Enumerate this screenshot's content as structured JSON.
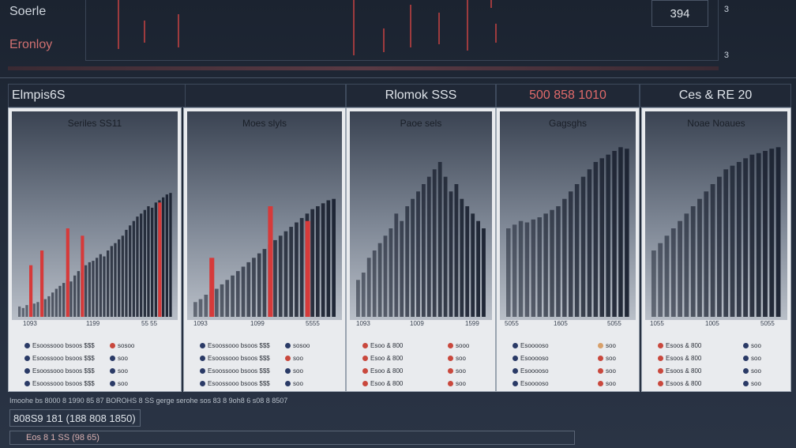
{
  "header": {
    "title": "Soerle",
    "subtitle": "Eronloy",
    "value_box": "394",
    "markers": [
      "3",
      "3"
    ]
  },
  "section_title": "Elmpis6S",
  "tabs": [
    {
      "label": "Rlomok SSS",
      "accent": false
    },
    {
      "label": "500 858 1010",
      "accent": true
    },
    {
      "label": "Ces & RE 20",
      "accent": false
    }
  ],
  "colors": {
    "accent_red": "#d63a3a",
    "bar_dark": "#1d2433",
    "legend_navy": "#2a3a66",
    "legend_red": "#c9483d",
    "legend_tan": "#d8a06a"
  },
  "chart_data": [
    {
      "type": "bar",
      "title": "Seriles SS11",
      "x_ticks": [
        "1093",
        "1199",
        "55 55"
      ],
      "series": [
        {
          "values": [
            14,
            12,
            16,
            15,
            18,
            20,
            22,
            24,
            28,
            33,
            38,
            42,
            46,
            50,
            48,
            56,
            62,
            60,
            70,
            74,
            76,
            80,
            85,
            82,
            90,
            96,
            100,
            105,
            110,
            118,
            124,
            130,
            136,
            140,
            145,
            150,
            148,
            155,
            158,
            162,
            166,
            168
          ]
        },
        {
          "values": [
            null,
            null,
            null,
            70,
            null,
            null,
            90,
            null,
            null,
            null,
            null,
            null,
            null,
            120,
            null,
            null,
            null,
            110,
            null,
            null,
            null,
            null,
            null,
            null,
            null,
            null,
            null,
            null,
            null,
            null,
            null,
            null,
            null,
            null,
            null,
            null,
            null,
            null,
            155,
            null,
            null,
            null
          ]
        }
      ],
      "legend": [
        {
          "text": "Esoossooo bsoos $$$",
          "color": "navy"
        },
        {
          "text": "Esoossooo bsoos $$$",
          "color": "navy"
        },
        {
          "text": "Esoossooo bsoos $$$",
          "color": "navy"
        },
        {
          "text": "Esoossooo bsoos $$$",
          "color": "navy"
        },
        {
          "text": "sosoo",
          "color": "red"
        },
        {
          "text": "soo",
          "color": "navy"
        },
        {
          "text": "soo",
          "color": "navy"
        },
        {
          "text": "soo",
          "color": "navy"
        }
      ]
    },
    {
      "type": "bar",
      "title": "Moes slyls",
      "x_ticks": [
        "1093",
        "1099",
        "5555"
      ],
      "series": [
        {
          "values": [
            20,
            24,
            30,
            34,
            38,
            44,
            50,
            56,
            62,
            68,
            74,
            80,
            86,
            92,
            98,
            104,
            110,
            116,
            122,
            128,
            134,
            140,
            146,
            150,
            154,
            158,
            160
          ]
        },
        {
          "values": [
            null,
            null,
            null,
            80,
            null,
            null,
            null,
            null,
            null,
            null,
            null,
            null,
            null,
            null,
            150,
            null,
            null,
            null,
            null,
            null,
            null,
            130,
            null,
            null,
            null,
            null,
            null
          ]
        }
      ],
      "legend": [
        {
          "text": "Esoossooo bsoos $$$",
          "color": "navy"
        },
        {
          "text": "Esoossooo bsoos $$$",
          "color": "navy"
        },
        {
          "text": "Esoossooo bsoos $$$",
          "color": "navy"
        },
        {
          "text": "Esoossooo bsoos $$$",
          "color": "navy"
        },
        {
          "text": "sosoo",
          "color": "navy"
        },
        {
          "text": "soo",
          "color": "red"
        },
        {
          "text": "soo",
          "color": "navy"
        },
        {
          "text": "soo",
          "color": "navy"
        }
      ]
    },
    {
      "type": "bar",
      "title": "Paoe sels",
      "x_ticks": [
        "1093",
        "1009",
        "1599"
      ],
      "series": [
        {
          "values": [
            50,
            60,
            80,
            90,
            100,
            110,
            120,
            140,
            130,
            150,
            160,
            170,
            180,
            190,
            200,
            210,
            190,
            170,
            180,
            160,
            150,
            140,
            130,
            120
          ]
        }
      ],
      "legend": [
        {
          "text": "Esoo & 800",
          "color": "red"
        },
        {
          "text": "Esoo & 800",
          "color": "red"
        },
        {
          "text": "Esoo & 800",
          "color": "red"
        },
        {
          "text": "Esoo & 800",
          "color": "red"
        },
        {
          "text": "sooo",
          "color": "red"
        },
        {
          "text": "soo",
          "color": "red"
        },
        {
          "text": "soo",
          "color": "red"
        },
        {
          "text": "soo",
          "color": "red"
        }
      ]
    },
    {
      "type": "bar",
      "title": "Gagsghs",
      "x_ticks": [
        "5055",
        "1605",
        "5055"
      ],
      "series": [
        {
          "values": [
            120,
            125,
            130,
            128,
            132,
            135,
            140,
            145,
            150,
            160,
            170,
            180,
            190,
            200,
            210,
            215,
            220,
            225,
            230,
            228
          ]
        }
      ],
      "legend": [
        {
          "text": "Esooooso",
          "color": "navy"
        },
        {
          "text": "Esooooso",
          "color": "navy"
        },
        {
          "text": "Esooooso",
          "color": "navy"
        },
        {
          "text": "Esooooso",
          "color": "navy"
        },
        {
          "text": "soo",
          "color": "tan"
        },
        {
          "text": "soo",
          "color": "red"
        },
        {
          "text": "soo",
          "color": "red"
        },
        {
          "text": "soo",
          "color": "red"
        }
      ]
    },
    {
      "type": "bar",
      "title": "Noae Noaues",
      "x_ticks": [
        "1055",
        "1005",
        "5055"
      ],
      "series": [
        {
          "values": [
            90,
            100,
            110,
            120,
            130,
            140,
            150,
            160,
            170,
            180,
            190,
            200,
            205,
            210,
            215,
            220,
            222,
            225,
            228,
            230
          ]
        }
      ],
      "legend": [
        {
          "text": "Esoos & 800",
          "color": "red"
        },
        {
          "text": "Esoos & 800",
          "color": "red"
        },
        {
          "text": "Esoos & 800",
          "color": "red"
        },
        {
          "text": "Esoos & 800",
          "color": "red"
        },
        {
          "text": "soo",
          "color": "navy"
        },
        {
          "text": "soo",
          "color": "navy"
        },
        {
          "text": "soo",
          "color": "navy"
        },
        {
          "text": "soo",
          "color": "navy"
        }
      ]
    }
  ],
  "footer": {
    "caption": "Imoohe bs 8000 8 1990 85 87 BOROHS 8 SS gerge serohe sos 83 8 9oh8 6 s08 8 8507",
    "box": "808S9 181 (188 808 1850)",
    "bar": "Eos 8 1 SS (98 65)"
  }
}
